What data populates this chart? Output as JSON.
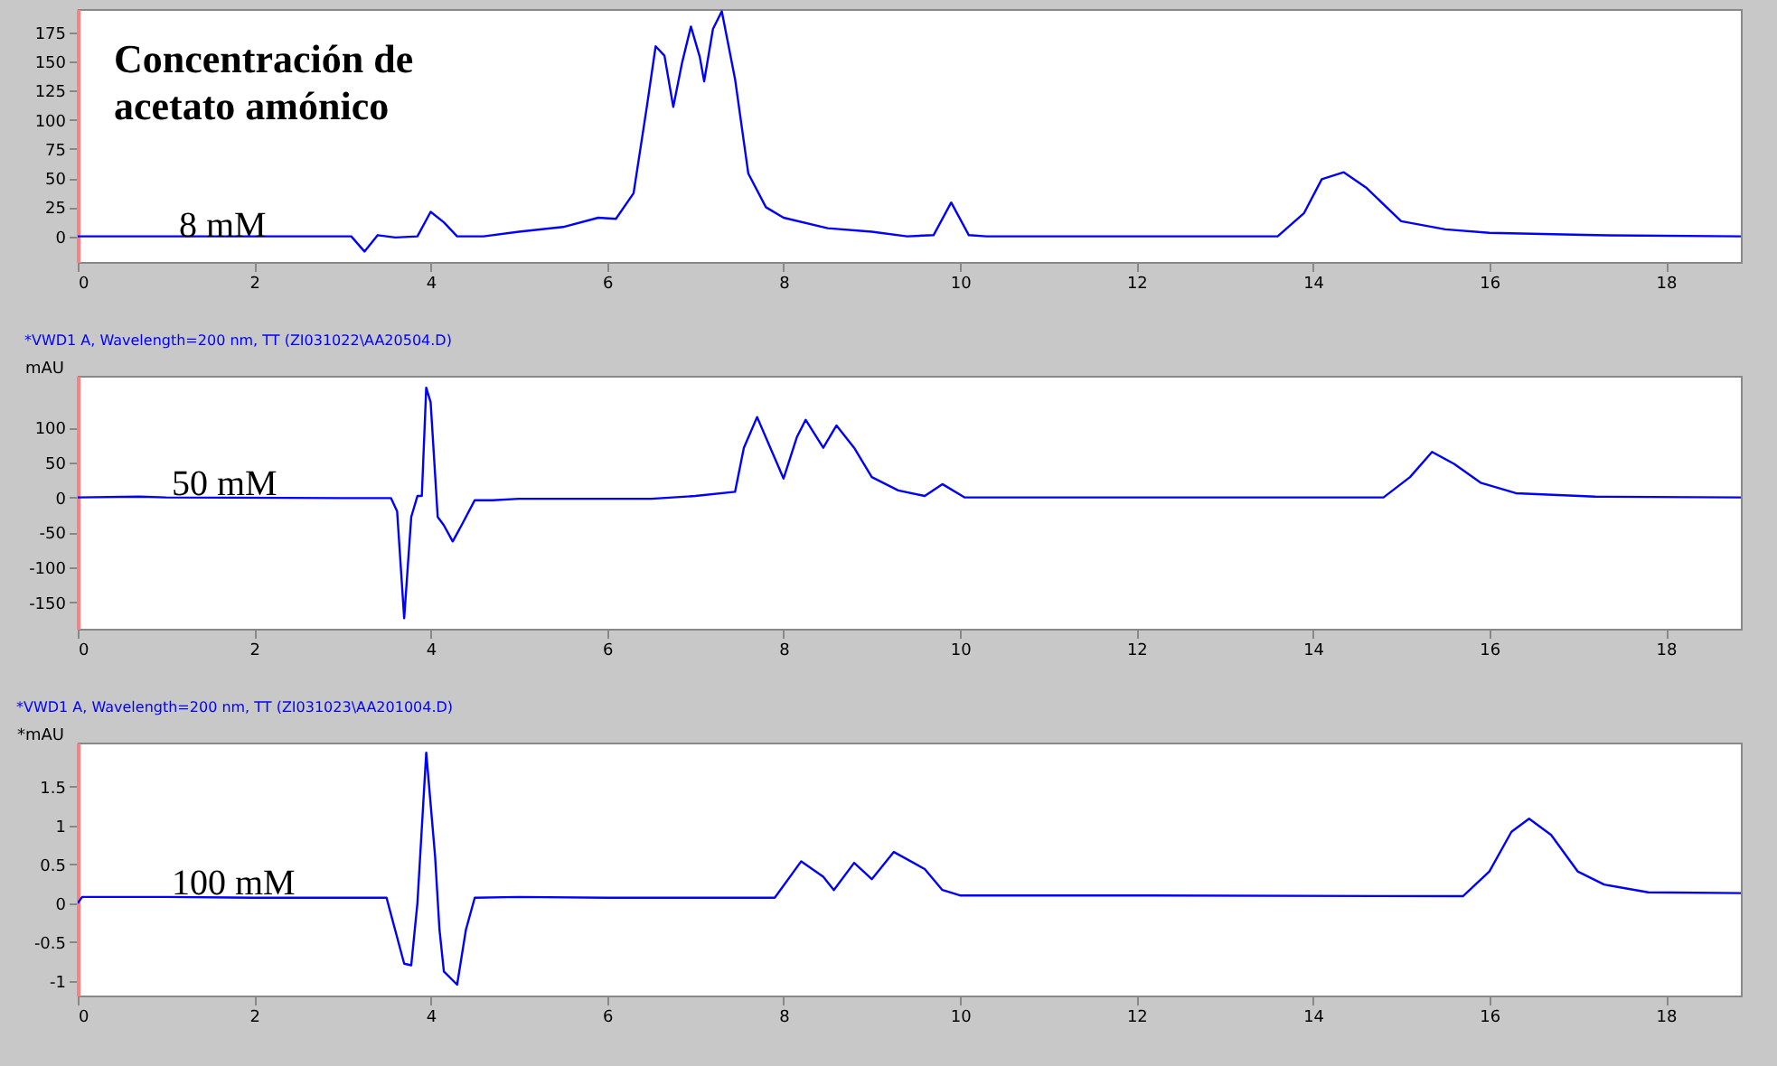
{
  "chart_data": [
    {
      "type": "line",
      "annotations": [
        "Concentración de acetato amónico",
        "8 mM"
      ],
      "x": [
        0,
        3.1,
        3.25,
        3.4,
        3.6,
        3.85,
        4.0,
        4.15,
        4.3,
        4.6,
        5.0,
        5.5,
        5.9,
        6.1,
        6.3,
        6.45,
        6.55,
        6.65,
        6.75,
        6.85,
        6.95,
        7.05,
        7.1,
        7.2,
        7.3,
        7.45,
        7.6,
        7.8,
        8.0,
        8.5,
        9.0,
        9.4,
        9.7,
        9.9,
        10.1,
        10.3,
        13.6,
        13.9,
        14.1,
        14.35,
        14.6,
        15.0,
        15.5,
        16.0,
        17.2,
        18.85
      ],
      "series": [
        {
          "color": "#0000ff",
          "values": [
            0,
            0,
            -13,
            1,
            -1,
            0,
            21,
            12,
            0,
            0,
            4,
            8,
            16,
            15,
            37,
            111,
            163,
            155,
            111,
            149,
            180,
            154,
            133,
            178,
            193,
            135,
            54,
            25,
            16,
            7,
            4,
            0,
            1,
            29,
            1,
            0,
            0,
            20,
            49,
            55,
            42,
            13,
            6,
            3,
            1,
            0
          ]
        }
      ],
      "xlim": [
        0,
        18.85
      ],
      "xticks": [
        0,
        2,
        4,
        6,
        8,
        10,
        12,
        14,
        16,
        18
      ],
      "ylim": [
        -22,
        195
      ],
      "yticks": [
        0,
        25,
        50,
        75,
        100,
        125,
        150,
        175
      ]
    },
    {
      "type": "line",
      "title": "*VWD1 A, Wavelength=200 nm, TT (ZI031022\\AA20504.D)",
      "ylabel": "mAU",
      "annotations": [
        "50 mM"
      ],
      "x": [
        0,
        0.7,
        1.0,
        3.0,
        3.55,
        3.62,
        3.7,
        3.78,
        3.85,
        3.9,
        3.95,
        4.0,
        4.08,
        4.15,
        4.25,
        4.35,
        4.5,
        4.7,
        5.0,
        6.5,
        7.0,
        7.45,
        7.55,
        7.7,
        7.85,
        8.0,
        8.15,
        8.25,
        8.45,
        8.6,
        8.8,
        9.0,
        9.3,
        9.6,
        9.8,
        10.05,
        12,
        14.8,
        15.1,
        15.35,
        15.6,
        15.9,
        16.3,
        17.2,
        18.85
      ],
      "series": [
        {
          "color": "#0000ff",
          "values": [
            0,
            1,
            0,
            -1,
            -1,
            -20,
            -173,
            -28,
            2,
            2,
            157,
            136,
            -28,
            -40,
            -63,
            -40,
            -4,
            -4,
            -2,
            -2,
            2,
            8,
            71,
            115,
            71,
            27,
            86,
            111,
            71,
            103,
            71,
            29,
            10,
            2,
            19,
            0,
            0,
            0,
            29,
            65,
            48,
            21,
            6,
            1,
            0
          ]
        }
      ],
      "xlim": [
        0,
        18.85
      ],
      "xticks": [
        0,
        2,
        4,
        6,
        8,
        10,
        12,
        14,
        16,
        18
      ],
      "ylim": [
        -188,
        174
      ],
      "yticks": [
        -150,
        -100,
        -50,
        0,
        50,
        100
      ]
    },
    {
      "type": "line",
      "title": "*VWD1 A, Wavelength=200 nm, TT (ZI031023\\AA201004.D)",
      "ylabel": "*mAU",
      "annotations": [
        "100 mM"
      ],
      "x": [
        0,
        0.05,
        1,
        2,
        3.5,
        3.7,
        3.78,
        3.85,
        3.95,
        4.05,
        4.1,
        4.15,
        4.3,
        4.4,
        4.5,
        5,
        6,
        7,
        7.9,
        8.2,
        8.45,
        8.57,
        8.8,
        9.0,
        9.25,
        9.6,
        9.8,
        10.0,
        12,
        15.7,
        16.0,
        16.25,
        16.45,
        16.7,
        17.0,
        17.3,
        17.8,
        18.85
      ],
      "series": [
        {
          "color": "#0000ff",
          "values": [
            0,
            0.08,
            0.08,
            0.07,
            0.07,
            -0.78,
            -0.8,
            0,
            1.94,
            0.61,
            -0.34,
            -0.88,
            -1.05,
            -0.34,
            0.07,
            0.08,
            0.07,
            0.07,
            0.07,
            0.54,
            0.34,
            0.17,
            0.52,
            0.31,
            0.66,
            0.44,
            0.17,
            0.1,
            0.1,
            0.09,
            0.41,
            0.92,
            1.09,
            0.88,
            0.41,
            0.24,
            0.14,
            0.13
          ]
        }
      ],
      "xlim": [
        0,
        18.85
      ],
      "xticks": [
        0,
        2,
        4,
        6,
        8,
        10,
        12,
        14,
        16,
        18
      ],
      "ylim": [
        -1.19,
        2.07
      ],
      "yticks": [
        -1,
        -0.5,
        0,
        0.5,
        1,
        1.5
      ]
    }
  ]
}
